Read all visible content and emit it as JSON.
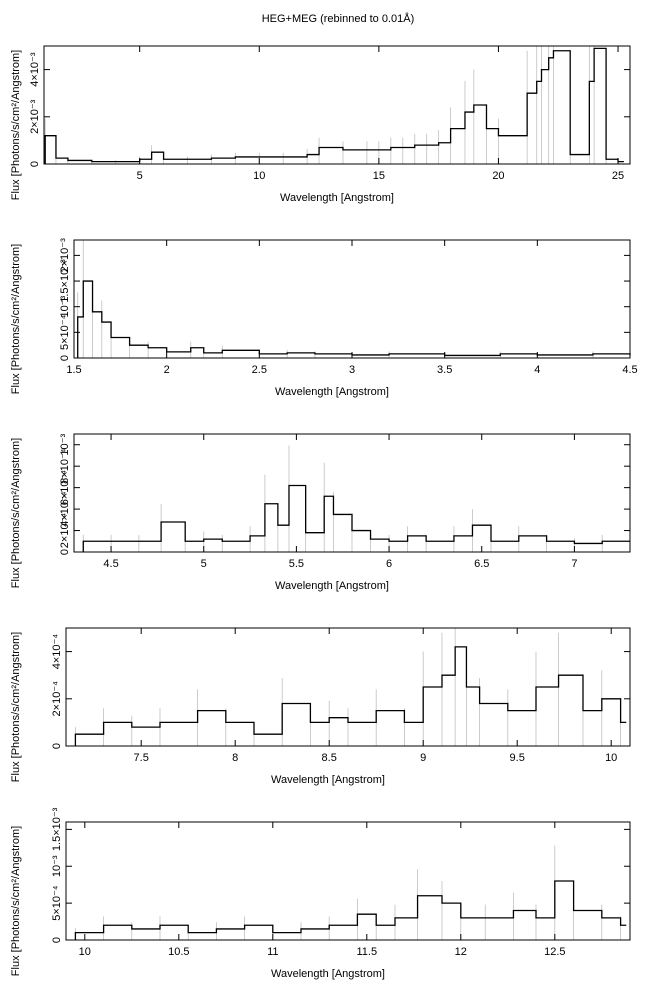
{
  "title": "HEG+MEG (rebinned to 0.01Å)",
  "colors": {
    "line": "#000000",
    "error_bar": "#bfbfbf",
    "background": "#ffffff"
  },
  "chart_data": [
    {
      "type": "line",
      "name": "panel-1",
      "xlabel": "Wavelength [Angstrom]",
      "ylabel": "Flux [Photons/s/cm²/Angstrom]",
      "xlim": [
        1.0,
        25.5
      ],
      "ylim": [
        0,
        0.005
      ],
      "xticks": [
        {
          "v": 5,
          "label": "5"
        },
        {
          "v": 10,
          "label": "10"
        },
        {
          "v": 15,
          "label": "15"
        },
        {
          "v": 20,
          "label": "20"
        },
        {
          "v": 25,
          "label": "25"
        }
      ],
      "yticks": [
        {
          "v": 0,
          "label": "0"
        },
        {
          "v": 0.002,
          "label": "2×10⁻³"
        },
        {
          "v": 0.004,
          "label": "4×10⁻³"
        }
      ],
      "x": [
        1.05,
        1.5,
        2.0,
        3.0,
        4.0,
        5.0,
        5.5,
        6.0,
        7.0,
        8.0,
        9.0,
        10.0,
        11.0,
        12.0,
        12.5,
        13.5,
        14.5,
        15.0,
        15.5,
        16.0,
        16.5,
        17.0,
        17.5,
        18.0,
        18.6,
        18.97,
        19.5,
        20.0,
        21.2,
        21.6,
        21.8,
        22.1,
        22.3,
        23.0,
        23.8,
        24.0,
        24.5,
        25.0
      ],
      "y": [
        0.0012,
        0.00025,
        0.00015,
        0.0001,
        0.0001,
        0.0002,
        0.0005,
        0.0002,
        0.0002,
        0.00025,
        0.0003,
        0.0003,
        0.0003,
        0.0004,
        0.0007,
        0.0006,
        0.0006,
        0.0006,
        0.0007,
        0.0007,
        0.0008,
        0.0008,
        0.0009,
        0.0015,
        0.0022,
        0.0025,
        0.0015,
        0.0012,
        0.003,
        0.0035,
        0.004,
        0.0045,
        0.0048,
        0.0004,
        0.0035,
        0.0049,
        0.0002,
        0.0001
      ]
    },
    {
      "type": "line",
      "name": "panel-2",
      "xlabel": "Wavelength [Angstrom]",
      "ylabel": "Flux [Photons/s/cm²/Angstrom]",
      "xlim": [
        1.5,
        4.5
      ],
      "ylim": [
        0,
        0.0023
      ],
      "xticks": [
        {
          "v": 1.5,
          "label": "1.5"
        },
        {
          "v": 2,
          "label": "2"
        },
        {
          "v": 2.5,
          "label": "2.5"
        },
        {
          "v": 3,
          "label": "3"
        },
        {
          "v": 3.5,
          "label": "3.5"
        },
        {
          "v": 4,
          "label": "4"
        },
        {
          "v": 4.5,
          "label": "4.5"
        }
      ],
      "yticks": [
        {
          "v": 0,
          "label": "0"
        },
        {
          "v": 0.0005,
          "label": "5×10⁻⁴"
        },
        {
          "v": 0.001,
          "label": "10⁻³"
        },
        {
          "v": 0.0015,
          "label": "1.5×10⁻³"
        },
        {
          "v": 0.002,
          "label": "2×10⁻³"
        }
      ],
      "x": [
        1.52,
        1.55,
        1.6,
        1.65,
        1.7,
        1.8,
        1.9,
        2.0,
        2.13,
        2.2,
        2.3,
        2.5,
        2.65,
        2.8,
        3.0,
        3.2,
        3.5,
        3.8,
        4.0,
        4.3,
        4.5
      ],
      "y": [
        0.0008,
        0.0015,
        0.0009,
        0.0007,
        0.0004,
        0.00025,
        0.0002,
        0.00012,
        0.0002,
        0.0001,
        0.00015,
        8e-05,
        0.0001,
        8e-05,
        6e-05,
        8e-05,
        5e-05,
        8e-05,
        6e-05,
        8e-05,
        5e-05
      ]
    },
    {
      "type": "line",
      "name": "panel-3",
      "xlabel": "Wavelength [Angstrom]",
      "ylabel": "Flux [Photons/s/cm²/Angstrom]",
      "xlim": [
        4.3,
        7.3
      ],
      "ylim": [
        0,
        0.0011
      ],
      "xticks": [
        {
          "v": 4.5,
          "label": "4.5"
        },
        {
          "v": 5,
          "label": "5"
        },
        {
          "v": 5.5,
          "label": "5.5"
        },
        {
          "v": 6,
          "label": "6"
        },
        {
          "v": 6.5,
          "label": "6.5"
        },
        {
          "v": 7,
          "label": "7"
        }
      ],
      "yticks": [
        {
          "v": 0,
          "label": "0"
        },
        {
          "v": 0.0002,
          "label": "2×10⁻⁴"
        },
        {
          "v": 0.0004,
          "label": "4×10⁻⁴"
        },
        {
          "v": 0.0006,
          "label": "6×10⁻⁴"
        },
        {
          "v": 0.0008,
          "label": "8×10⁻⁴"
        },
        {
          "v": 0.001,
          "label": "10⁻³"
        }
      ],
      "x": [
        4.35,
        4.5,
        4.65,
        4.77,
        4.9,
        5.0,
        5.1,
        5.25,
        5.33,
        5.4,
        5.46,
        5.55,
        5.65,
        5.7,
        5.8,
        5.9,
        6.0,
        6.1,
        6.2,
        6.35,
        6.45,
        6.55,
        6.7,
        6.85,
        7.0,
        7.15,
        7.3
      ],
      "y": [
        0.0001,
        0.0001,
        0.0001,
        0.00028,
        0.0001,
        0.00012,
        0.0001,
        0.00015,
        0.00045,
        0.00025,
        0.00062,
        0.00018,
        0.00052,
        0.00035,
        0.0002,
        0.00012,
        0.0001,
        0.00015,
        0.0001,
        0.00015,
        0.00025,
        0.0001,
        0.00015,
        0.0001,
        8e-05,
        0.0001,
        0.0001
      ]
    },
    {
      "type": "line",
      "name": "panel-4",
      "xlabel": "Wavelength [Angstrom]",
      "ylabel": "Flux [Photons/s/cm²/Angstrom]",
      "xlim": [
        7.1,
        10.1
      ],
      "ylim": [
        0,
        0.0005
      ],
      "xticks": [
        {
          "v": 7.5,
          "label": "7.5"
        },
        {
          "v": 8,
          "label": "8"
        },
        {
          "v": 8.5,
          "label": "8.5"
        },
        {
          "v": 9,
          "label": "9"
        },
        {
          "v": 9.5,
          "label": "9.5"
        },
        {
          "v": 10,
          "label": "10"
        }
      ],
      "yticks": [
        {
          "v": 0,
          "label": "0"
        },
        {
          "v": 0.0002,
          "label": "2×10⁻⁴"
        },
        {
          "v": 0.0004,
          "label": "4×10⁻⁴"
        }
      ],
      "x": [
        7.15,
        7.3,
        7.45,
        7.6,
        7.8,
        7.95,
        8.1,
        8.25,
        8.4,
        8.5,
        8.6,
        8.75,
        8.9,
        9.0,
        9.1,
        9.17,
        9.23,
        9.3,
        9.45,
        9.6,
        9.72,
        9.85,
        9.95,
        10.05
      ],
      "y": [
        5e-05,
        0.0001,
        8e-05,
        0.0001,
        0.00015,
        0.0001,
        5e-05,
        0.00018,
        0.0001,
        0.00012,
        0.0001,
        0.00015,
        0.0001,
        0.00025,
        0.0003,
        0.00042,
        0.00025,
        0.00018,
        0.00015,
        0.00025,
        0.0003,
        0.00015,
        0.0002,
        0.0001
      ]
    },
    {
      "type": "line",
      "name": "panel-5",
      "xlabel": "Wavelength [Angstrom]",
      "ylabel": "Flux [Photons/s/cm²/Angstrom]",
      "xlim": [
        9.9,
        12.9
      ],
      "ylim": [
        0,
        0.0016
      ],
      "xticks": [
        {
          "v": 10,
          "label": "10"
        },
        {
          "v": 10.5,
          "label": "10.5"
        },
        {
          "v": 11,
          "label": "11"
        },
        {
          "v": 11.5,
          "label": "11.5"
        },
        {
          "v": 12,
          "label": "12"
        },
        {
          "v": 12.5,
          "label": "12.5"
        }
      ],
      "yticks": [
        {
          "v": 0,
          "label": "0"
        },
        {
          "v": 0.0005,
          "label": "5×10⁻⁴"
        },
        {
          "v": 0.001,
          "label": "10⁻³"
        },
        {
          "v": 0.0015,
          "label": "1.5×10⁻³"
        }
      ],
      "x": [
        9.95,
        10.1,
        10.25,
        10.4,
        10.55,
        10.7,
        10.85,
        11.0,
        11.15,
        11.3,
        11.45,
        11.55,
        11.65,
        11.77,
        11.9,
        12.0,
        12.13,
        12.28,
        12.4,
        12.5,
        12.6,
        12.75,
        12.85
      ],
      "y": [
        0.0001,
        0.0002,
        0.00015,
        0.0002,
        0.0001,
        0.00015,
        0.0002,
        0.0001,
        0.00015,
        0.0002,
        0.00035,
        0.0002,
        0.0003,
        0.0006,
        0.0005,
        0.0003,
        0.0003,
        0.0004,
        0.0003,
        0.0008,
        0.0004,
        0.0003,
        0.0002
      ]
    }
  ]
}
